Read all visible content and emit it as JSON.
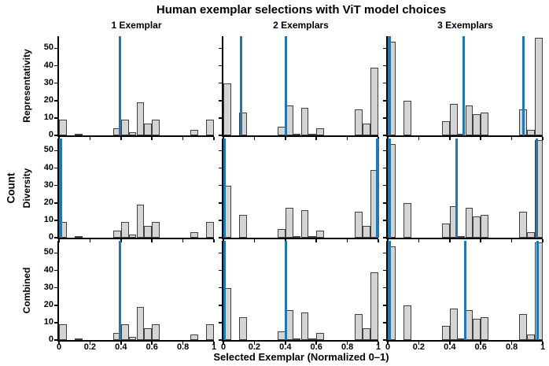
{
  "chart_data": {
    "type": "bar",
    "subtype": "histogram-grid",
    "title": "Human exemplar selections with ViT model choices",
    "xlabel": "Selected Exemplar (Normalized 0–1)",
    "ylabel": "Count",
    "xlim": [
      0,
      1
    ],
    "ylim": [
      0,
      57
    ],
    "bin_width": 0.05,
    "xticks": [
      0,
      0.2,
      0.4,
      0.6,
      0.8,
      1
    ],
    "xtick_labels": [
      "0",
      "0.2",
      "0.4",
      "0.6",
      "0.8",
      "1"
    ],
    "yticks": [
      0,
      10,
      20,
      30,
      40,
      50
    ],
    "legend": "none",
    "grid": false,
    "colors": {
      "bar_fill": "#d4d4d4",
      "bar_edge": "#404040",
      "vit_line": "#1f77b4",
      "spine": "#000000"
    },
    "columns": [
      {
        "label": "1 Exemplar",
        "bins": [
          {
            "x0": 0.0,
            "count": 9
          },
          {
            "x0": 0.1,
            "count": 1
          },
          {
            "x0": 0.35,
            "count": 4
          },
          {
            "x0": 0.4,
            "count": 9
          },
          {
            "x0": 0.45,
            "count": 2
          },
          {
            "x0": 0.5,
            "count": 19
          },
          {
            "x0": 0.55,
            "count": 7
          },
          {
            "x0": 0.6,
            "count": 9
          },
          {
            "x0": 0.85,
            "count": 3
          },
          {
            "x0": 0.95,
            "count": 9
          }
        ]
      },
      {
        "label": "2 Exemplars",
        "bins": [
          {
            "x0": 0.0,
            "count": 30
          },
          {
            "x0": 0.1,
            "count": 13
          },
          {
            "x0": 0.35,
            "count": 5
          },
          {
            "x0": 0.4,
            "count": 17
          },
          {
            "x0": 0.45,
            "count": 1
          },
          {
            "x0": 0.5,
            "count": 16
          },
          {
            "x0": 0.55,
            "count": 1
          },
          {
            "x0": 0.6,
            "count": 4
          },
          {
            "x0": 0.85,
            "count": 15
          },
          {
            "x0": 0.9,
            "count": 7
          },
          {
            "x0": 0.95,
            "count": 39
          }
        ]
      },
      {
        "label": "3 Exemplars",
        "bins": [
          {
            "x0": 0.0,
            "count": 54
          },
          {
            "x0": 0.1,
            "count": 20
          },
          {
            "x0": 0.35,
            "count": 8
          },
          {
            "x0": 0.4,
            "count": 18
          },
          {
            "x0": 0.45,
            "count": 1
          },
          {
            "x0": 0.5,
            "count": 17
          },
          {
            "x0": 0.55,
            "count": 12
          },
          {
            "x0": 0.6,
            "count": 13
          },
          {
            "x0": 0.85,
            "count": 15
          },
          {
            "x0": 0.9,
            "count": 3
          },
          {
            "x0": 0.95,
            "count": 56
          }
        ]
      }
    ],
    "rows": [
      {
        "label": "Representativity",
        "vit_lines": [
          [
            0.395
          ],
          [
            0.115,
            0.405
          ],
          [
            0.01,
            0.49,
            0.875
          ]
        ]
      },
      {
        "label": "Diversity",
        "vit_lines": [
          [
            0.01
          ],
          [
            0.005,
            0.995
          ],
          [
            0.01,
            0.445,
            0.963
          ]
        ]
      },
      {
        "label": "Combined",
        "vit_lines": [
          [
            0.395
          ],
          [
            0.005,
            0.402
          ],
          [
            0.01,
            0.5,
            0.965
          ]
        ]
      }
    ]
  }
}
